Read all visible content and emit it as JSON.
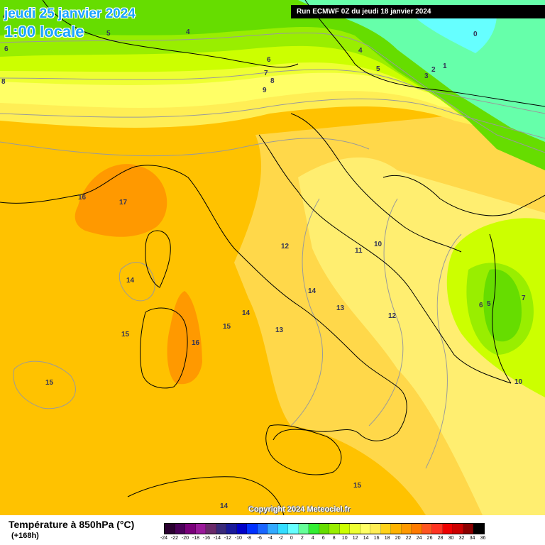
{
  "header": {
    "date_line": "jeudi 25 janvier 2024",
    "time_line": "1:00 locale",
    "run_info": "Run ECMWF 0Z du jeudi 18 janvier 2024"
  },
  "copyright": "Copyright 2024 Meteociel.fr",
  "footer": {
    "variable_title": "Température à 850hPa (°C)",
    "lead_time": "(+168h)"
  },
  "legend": {
    "ticks": [
      "-24",
      "-22",
      "-20",
      "-18",
      "-16",
      "-14",
      "-12",
      "-10",
      "-8",
      "-6",
      "-4",
      "-2",
      "0",
      "2",
      "4",
      "6",
      "8",
      "10",
      "12",
      "14",
      "16",
      "18",
      "20",
      "22",
      "24",
      "26",
      "28",
      "30",
      "32",
      "34",
      "36"
    ],
    "colors": [
      "#2a0030",
      "#4a0058",
      "#7a007a",
      "#9a1a9a",
      "#6a2a6a",
      "#3a2a7a",
      "#1a1a9a",
      "#0000c8",
      "#0030ff",
      "#1a66ff",
      "#33aaff",
      "#33ddff",
      "#66ffff",
      "#66ff99",
      "#33ee33",
      "#66dd00",
      "#99ee00",
      "#ccff00",
      "#eeff33",
      "#ffff66",
      "#ffee55",
      "#ffd21a",
      "#ffb300",
      "#ff9900",
      "#ff7a00",
      "#ff5522",
      "#ff3322",
      "#ee0000",
      "#cc0000",
      "#8a0000",
      "#000000"
    ]
  },
  "contour_labels": [
    {
      "text": "4"
    },
    {
      "text": "5"
    },
    {
      "text": "4"
    },
    {
      "text": "6"
    },
    {
      "text": "8"
    },
    {
      "text": "6"
    },
    {
      "text": "7"
    },
    {
      "text": "8"
    },
    {
      "text": "9"
    },
    {
      "text": "4"
    },
    {
      "text": "5"
    },
    {
      "text": "3"
    },
    {
      "text": "2"
    },
    {
      "text": "1"
    },
    {
      "text": "0"
    },
    {
      "text": "16"
    },
    {
      "text": "17"
    },
    {
      "text": "14"
    },
    {
      "text": "15"
    },
    {
      "text": "16"
    },
    {
      "text": "15"
    },
    {
      "text": "14"
    },
    {
      "text": "15"
    },
    {
      "text": "13"
    },
    {
      "text": "12"
    },
    {
      "text": "11"
    },
    {
      "text": "10"
    },
    {
      "text": "14"
    },
    {
      "text": "13"
    },
    {
      "text": "12"
    },
    {
      "text": "6"
    },
    {
      "text": "5"
    },
    {
      "text": "7"
    },
    {
      "text": "10"
    },
    {
      "text": "15"
    },
    {
      "text": "14"
    }
  ],
  "colors": {
    "date_text": "#1aa3ff",
    "run_bar_bg": "#000000",
    "warm_orange": "#ff9900",
    "orange_yellow": "#ffc200",
    "light_yellow": "#ffff88",
    "green": "#66dd00",
    "teal": "#66ffaa",
    "cyan": "#66ffff"
  }
}
